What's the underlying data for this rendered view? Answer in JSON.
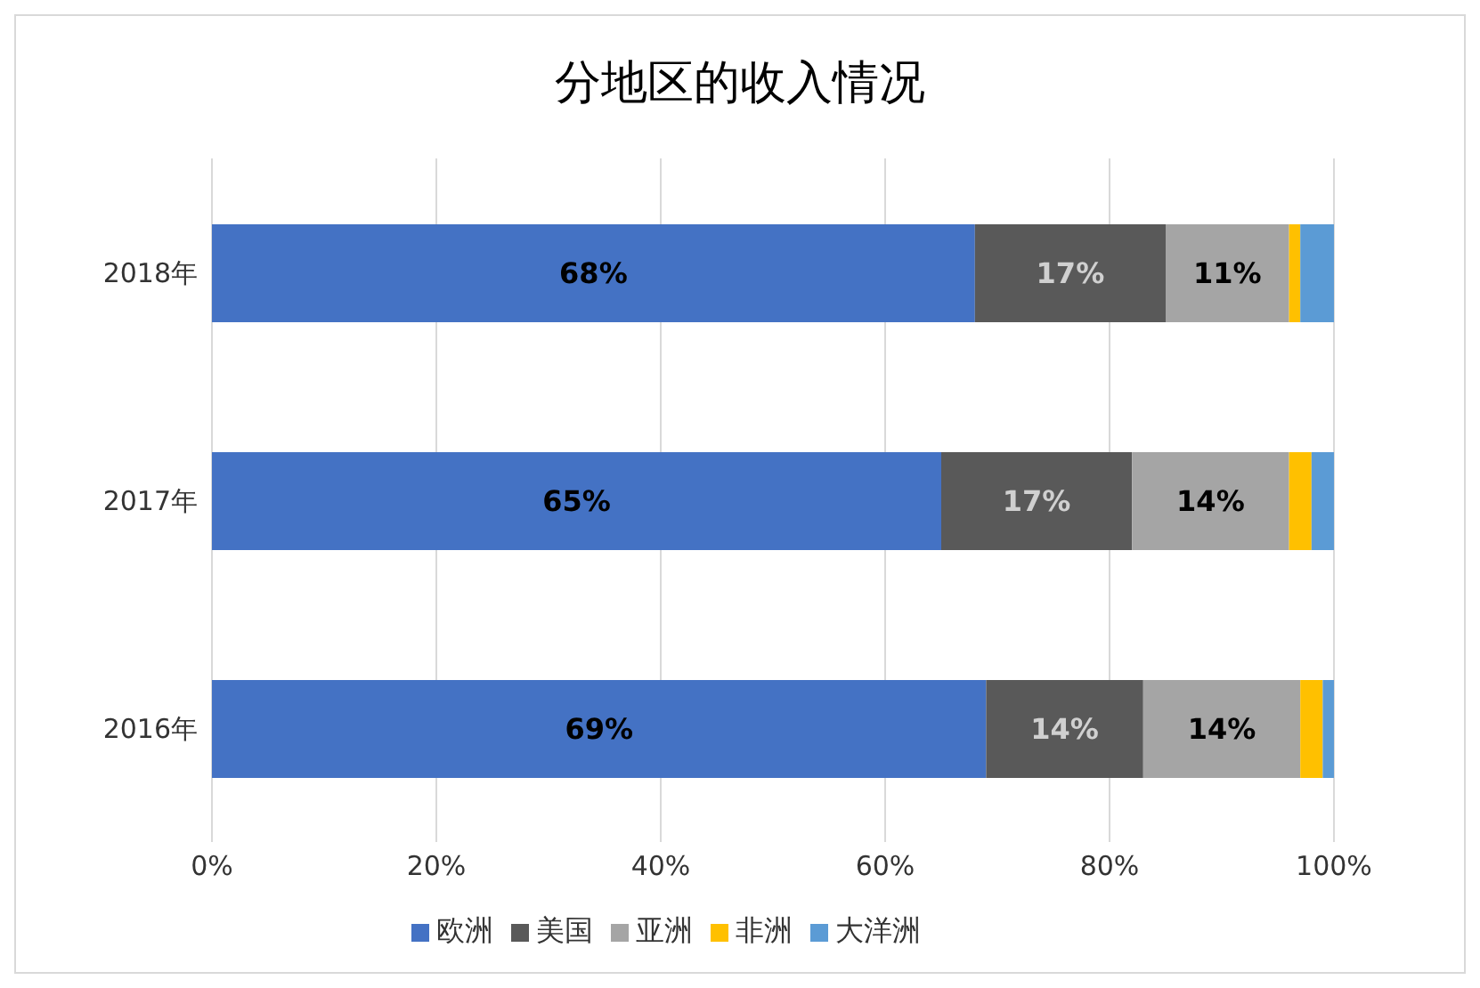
{
  "chart_data": {
    "type": "bar",
    "title": "分地区的收入情况",
    "orientation": "horizontal",
    "stacked": true,
    "categories": [
      "2018年",
      "2017年",
      "2016年"
    ],
    "series": [
      {
        "name": "欧洲",
        "color": "#4472c4",
        "values": [
          68,
          65,
          69
        ],
        "value_labels": [
          "68%",
          "65%",
          "69%"
        ]
      },
      {
        "name": "美国",
        "color": "#595959",
        "values": [
          17,
          17,
          14
        ],
        "value_labels": [
          "17%",
          "17%",
          "14%"
        ]
      },
      {
        "name": "亚洲",
        "color": "#a5a5a5",
        "values": [
          11,
          14,
          14
        ],
        "value_labels": [
          "11%",
          "14%",
          "14%"
        ]
      },
      {
        "name": "非洲",
        "color": "#ffc000",
        "values": [
          1,
          2,
          2
        ]
      },
      {
        "name": "大洋洲",
        "color": "#5b9bd5",
        "values": [
          3,
          2,
          1
        ]
      }
    ],
    "xlim": [
      0,
      100
    ],
    "xticks": [
      {
        "value": 0,
        "label": "0%"
      },
      {
        "value": 20,
        "label": "20%"
      },
      {
        "value": 40,
        "label": "40%"
      },
      {
        "value": 60,
        "label": "60%"
      },
      {
        "value": 80,
        "label": "80%"
      },
      {
        "value": 100,
        "label": "100%"
      }
    ],
    "grid": "x",
    "legend": "bottom"
  }
}
